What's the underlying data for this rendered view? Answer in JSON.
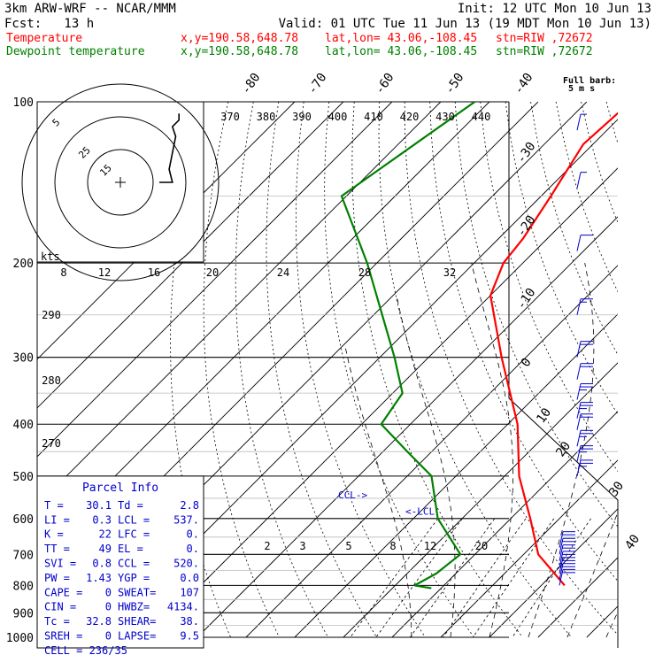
{
  "header": {
    "model": "3km ARW-WRF -- NCAR/MMM",
    "init": "Init: 12 UTC Mon 10 Jun 13",
    "fcst": "Fcst:   13 h",
    "valid": "Valid: 01 UTC Tue 11 Jun 13 (19 MDT Mon 10 Jun 13)",
    "temp_label": "Temperature",
    "dew_label": "Dewpoint temperature",
    "xy": "x,y=190.58,648.78",
    "latlon": "lat,lon= 43.06,-108.45",
    "stn": "stn=RIW ,72672",
    "temp_color": "#ff0000",
    "dew_color": "#008000"
  },
  "chart_data": {
    "type": "skew-t log-p sounding",
    "pressure_levels": [
      "100",
      "200",
      "300",
      "400",
      "500",
      "600",
      "700",
      "800",
      "900",
      "1000"
    ],
    "isotherm_labels": [
      "-80",
      "-70",
      "-60",
      "-50",
      "-40",
      "-30",
      "-20",
      "-10",
      "0",
      "10",
      "20",
      "30",
      "40"
    ],
    "theta_labels": [
      "370",
      "380",
      "390",
      "400",
      "410",
      "420",
      "430",
      "440"
    ],
    "theta_left_labels": [
      "290",
      "280",
      "270"
    ],
    "mixing_ratio_upper": [
      "8",
      "12",
      "16",
      "20",
      "24",
      "28",
      "32"
    ],
    "mixing_ratio_lower": [
      "2",
      "3",
      "5",
      "8",
      "12",
      "20"
    ],
    "temperature": [
      {
        "p": 100,
        "t": -61
      },
      {
        "p": 120,
        "t": -62
      },
      {
        "p": 150,
        "t": -58
      },
      {
        "p": 180,
        "t": -55
      },
      {
        "p": 200,
        "t": -54
      },
      {
        "p": 230,
        "t": -50
      },
      {
        "p": 300,
        "t": -35
      },
      {
        "p": 400,
        "t": -18
      },
      {
        "p": 500,
        "t": -7
      },
      {
        "p": 600,
        "t": 4
      },
      {
        "p": 700,
        "t": 13
      },
      {
        "p": 800,
        "t": 24.8
      }
    ],
    "dewpoint": [
      {
        "p": 100,
        "t": -93
      },
      {
        "p": 150,
        "t": -101
      },
      {
        "p": 200,
        "t": -82
      },
      {
        "p": 300,
        "t": -57
      },
      {
        "p": 350,
        "t": -48
      },
      {
        "p": 400,
        "t": -46
      },
      {
        "p": 450,
        "t": -35
      },
      {
        "p": 500,
        "t": -25
      },
      {
        "p": 600,
        "t": -15
      },
      {
        "p": 700,
        "t": -3
      },
      {
        "p": 760,
        "t": -4
      },
      {
        "p": 800,
        "t": -6
      },
      {
        "p": 810,
        "t": -2
      }
    ],
    "level_labels": {
      "ccl": "CCL->",
      "lcl": "<-LCL"
    },
    "hodograph": {
      "kts_label": "kts",
      "ring_labels": [
        "5",
        "25",
        "15"
      ],
      "trace_kts": [
        [
          0,
          0
        ],
        [
          4,
          0
        ],
        [
          3,
          4
        ],
        [
          4,
          9
        ],
        [
          5,
          14
        ],
        [
          4,
          17
        ],
        [
          6,
          19
        ],
        [
          6,
          21
        ]
      ]
    },
    "wind_barb_header": [
      "Full barb:",
      "5 m s"
    ],
    "wind_barbs": [
      {
        "p": 113,
        "speed": 5
      },
      {
        "p": 145,
        "speed": 8
      },
      {
        "p": 190,
        "speed": 10
      },
      {
        "p": 250,
        "speed": 15
      },
      {
        "p": 300,
        "speed": 20
      },
      {
        "p": 330,
        "speed": 22
      },
      {
        "p": 360,
        "speed": 25
      },
      {
        "p": 390,
        "speed": 25
      },
      {
        "p": 410,
        "speed": 24
      },
      {
        "p": 440,
        "speed": 25
      },
      {
        "p": 470,
        "speed": 25
      },
      {
        "p": 500,
        "speed": 26
      },
      {
        "p": 680,
        "speed": 20
      },
      {
        "p": 700,
        "speed": 22
      },
      {
        "p": 720,
        "speed": 24
      },
      {
        "p": 740,
        "speed": 25
      },
      {
        "p": 760,
        "speed": 24
      },
      {
        "p": 780,
        "speed": 22
      },
      {
        "p": 800,
        "speed": 20
      }
    ]
  },
  "parcel_info": {
    "title": "Parcel Info",
    "rows": [
      [
        "T  =",
        "30.1",
        "Td =",
        "2.8"
      ],
      [
        "LI =",
        "0.3",
        "LCL =",
        "537."
      ],
      [
        "K  =",
        "22",
        "LFC =",
        "0."
      ],
      [
        "TT =",
        "49",
        "EL =",
        "0."
      ],
      [
        "SVI =",
        "0.8",
        "CCL =",
        "520."
      ],
      [
        "PW =",
        "1.43",
        "YGP =",
        "0.0"
      ],
      [
        "CAPE =",
        "0",
        "SWEAT=",
        "107"
      ],
      [
        "CIN =",
        "0",
        "HWBZ=",
        "4134."
      ],
      [
        "Tc =",
        "32.8",
        "SHEAR=",
        "38."
      ],
      [
        "SREH =",
        "0",
        "LAPSE=",
        "9.5"
      ]
    ],
    "cell": "CELL = 236/35"
  }
}
